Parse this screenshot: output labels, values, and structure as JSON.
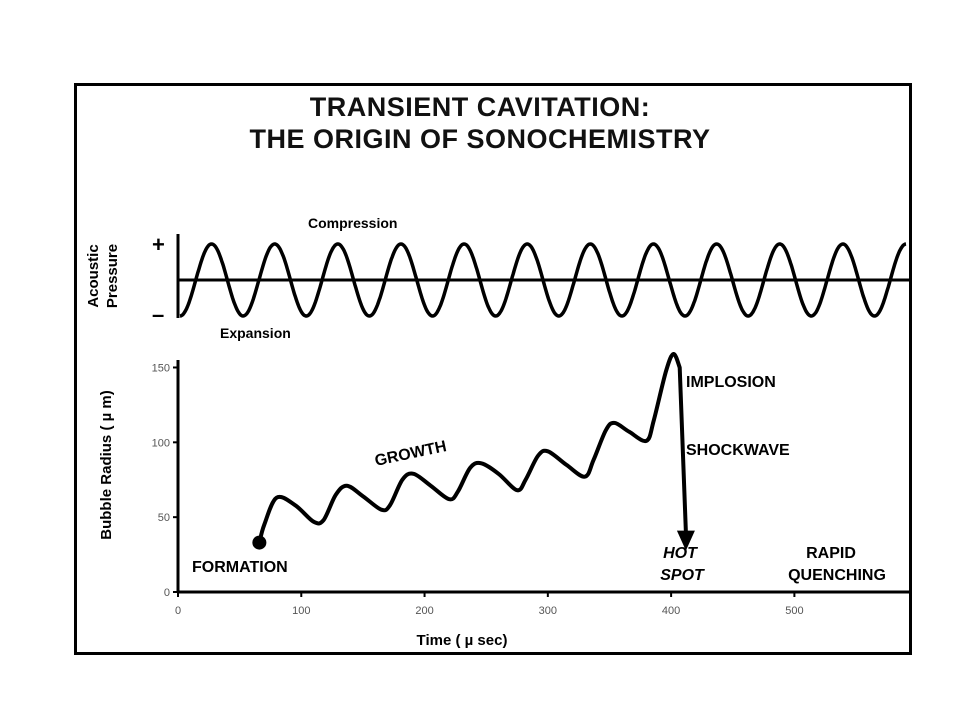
{
  "title_line1": "TRANSIENT CAVITATION:",
  "title_line2": "THE ORIGIN OF SONOCHEMISTRY",
  "pressure_panel": {
    "y_label_line1": "Acoustic",
    "y_label_line2": "Pressure",
    "plus_label": "+",
    "minus_label": "–",
    "compression_label": "Compression",
    "expansion_label": "Expansion",
    "cycles": 11.5
  },
  "chart_data": {
    "type": "line",
    "title": "",
    "xlabel": "Time ( µ sec)",
    "ylabel": "Bubble Radius ( µ m)",
    "xlim": [
      0,
      590
    ],
    "ylim": [
      0,
      155
    ],
    "x_ticks": [
      "0",
      "100",
      "200",
      "300",
      "400",
      "500"
    ],
    "y_ticks": [
      "0",
      "50",
      "100",
      "150"
    ],
    "series": [
      {
        "x": [
          66,
          70,
          80,
          95,
          110,
          118,
          128,
          137,
          150,
          165,
          172,
          182,
          191,
          205,
          220,
          227,
          237,
          246,
          260,
          275,
          282,
          292,
          300,
          315,
          330,
          337,
          347,
          354,
          366,
          380,
          386,
          396,
          402,
          407,
          412
        ],
        "y": [
          33,
          45,
          63,
          58,
          47,
          48,
          65,
          71,
          64,
          55,
          58,
          75,
          79,
          71,
          62,
          67,
          83,
          86,
          79,
          68,
          75,
          91,
          94,
          85,
          77,
          88,
          108,
          113,
          107,
          101,
          115,
          148,
          159,
          150,
          33
        ]
      }
    ],
    "annotations": {
      "formation": "FORMATION",
      "growth": "GROWTH",
      "implosion": "IMPLOSION",
      "shockwave": "SHOCKWAVE",
      "hot_spot_line1": "HOT",
      "hot_spot_line2": "SPOT",
      "rapid_line1": "RAPID",
      "rapid_line2": "QUENCHING"
    }
  }
}
